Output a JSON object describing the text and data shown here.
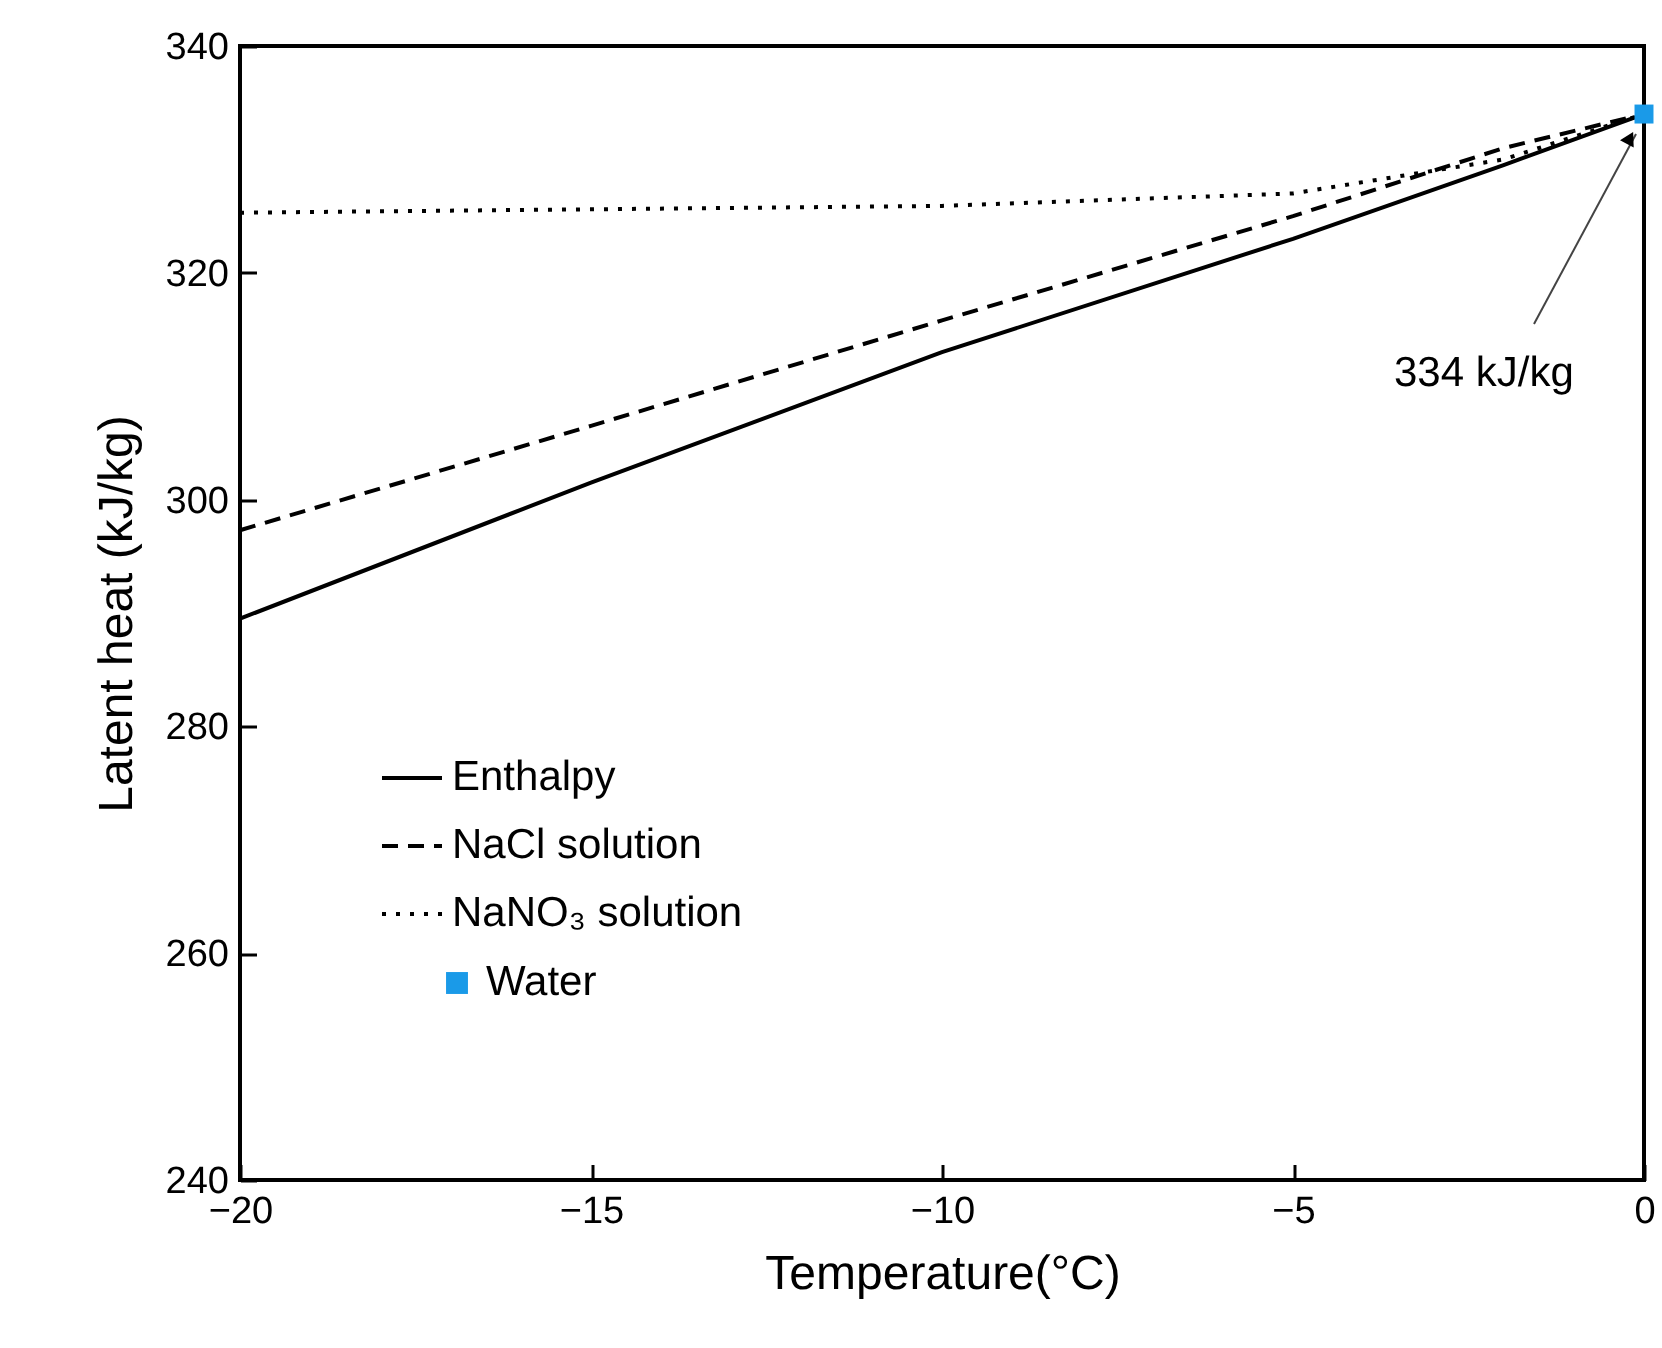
{
  "chart_data": {
    "type": "line",
    "xlabel": "Temperature(°C)",
    "ylabel": "Latent heat (kJ/kg)",
    "xlim": [
      -20,
      0
    ],
    "xticks": [
      -20,
      -15,
      -10,
      -5,
      0
    ],
    "ylim": [
      240,
      340
    ],
    "yticks": [
      240,
      260,
      280,
      300,
      320,
      340
    ],
    "grid": false,
    "legend": "bottom left",
    "marker": "none",
    "series": [
      {
        "name": "Enthalpy",
        "color": "#000000",
        "line_style": "solid",
        "x": [
          -20,
          -15,
          -10,
          -5,
          -2,
          0
        ],
        "values": [
          289.5,
          301.5,
          313,
          323,
          329.5,
          334
        ]
      },
      {
        "name": "NaCl solution",
        "color": "#000000",
        "line_style": "dashed",
        "x": [
          -20,
          -15,
          -10,
          -5,
          -2,
          0
        ],
        "values": [
          297.3,
          306.5,
          315.8,
          325,
          331,
          334
        ]
      },
      {
        "name": "NaNO₃ solution",
        "color": "#000000",
        "line_style": "dotted",
        "x": [
          -20,
          -15,
          -10,
          -5,
          -2,
          0
        ],
        "values": [
          325.3,
          325.6,
          325.9,
          327,
          330,
          334
        ]
      },
      {
        "name": "Water",
        "type": "scatter",
        "marker": "square",
        "color": "#1a9ae8",
        "x": [
          0
        ],
        "values": [
          334
        ]
      }
    ],
    "annotations": [
      "334 kJ/kg"
    ]
  }
}
